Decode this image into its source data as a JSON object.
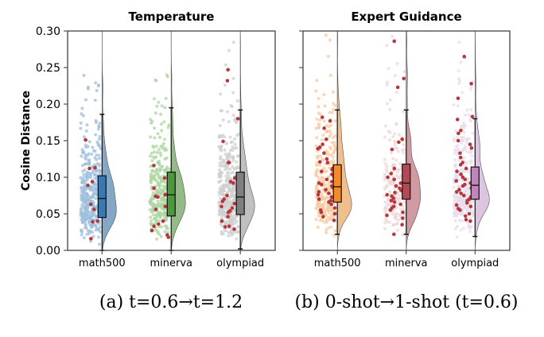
{
  "chart_data": [
    {
      "type": "box+violin+strip",
      "title": "Temperature",
      "ylabel": "Cosine Distance",
      "xlabel": "",
      "ylim": [
        0,
        0.3
      ],
      "yticks": [
        "0.00",
        "0.05",
        "0.10",
        "0.15",
        "0.20",
        "0.25",
        "0.30"
      ],
      "caption": "(a) t=0.6→t=1.2",
      "categories": [
        "math500",
        "minerva",
        "olympiad"
      ],
      "colors": {
        "box": [
          "#3a78b0",
          "#4a9a3a",
          "#7f7f7f"
        ],
        "violin": [
          "#86a6c6",
          "#94bb87",
          "#c0c0c0"
        ],
        "points": [
          "#9fbfdd",
          "#acd6a0",
          "#cfcfcf"
        ],
        "highlight": "#b5383f"
      },
      "box_stats": [
        {
          "whisker_low": 0.0,
          "q1": 0.045,
          "median": 0.071,
          "q3": 0.102,
          "whisker_high": 0.186
        },
        {
          "whisker_low": 0.0,
          "q1": 0.047,
          "median": 0.076,
          "q3": 0.107,
          "whisker_high": 0.195
        },
        {
          "whisker_low": 0.002,
          "q1": 0.049,
          "median": 0.073,
          "q3": 0.107,
          "whisker_high": 0.192
        }
      ],
      "highlighted_points": [
        [
          0.151,
          0.113,
          0.112,
          0.094,
          0.089,
          0.063,
          0.056,
          0.04,
          0.039,
          0.016
        ],
        [
          0.116,
          0.099,
          0.085,
          0.076,
          0.074,
          0.073,
          0.06,
          0.056,
          0.051,
          0.04,
          0.036,
          0.033,
          0.027,
          0.021,
          0.018
        ],
        [
          0.247,
          0.232,
          0.18,
          0.149,
          0.12,
          0.12,
          0.099,
          0.094,
          0.092,
          0.075,
          0.07,
          0.067,
          0.064,
          0.06,
          0.058,
          0.054,
          0.052,
          0.046,
          0.04,
          0.033,
          0.032,
          0.029
        ]
      ]
    },
    {
      "type": "box+violin+strip",
      "title": "Expert Guidance",
      "ylabel": "",
      "xlabel": "",
      "ylim": [
        0,
        0.3
      ],
      "yticks": [
        "",
        "",
        "",
        "",
        "",
        "",
        ""
      ],
      "caption": "(b) 0-shot→1-shot (t=0.6)",
      "categories": [
        "math500",
        "minerva",
        "olympiad"
      ],
      "colors": {
        "box": [
          "#f58a2c",
          "#b04a55",
          "#c283bf"
        ],
        "violin": [
          "#efbf8e",
          "#cf9aa0",
          "#dcc6df"
        ],
        "points": [
          "#f9c9a0",
          "#eed6da",
          "#e8dcec"
        ],
        "highlight": "#b5383f"
      },
      "box_stats": [
        {
          "whisker_low": 0.022,
          "q1": 0.066,
          "median": 0.087,
          "q3": 0.117,
          "whisker_high": 0.192
        },
        {
          "whisker_low": 0.022,
          "q1": 0.07,
          "median": 0.092,
          "q3": 0.118,
          "whisker_high": 0.192
        },
        {
          "whisker_low": 0.019,
          "q1": 0.07,
          "median": 0.089,
          "q3": 0.114,
          "whisker_high": 0.18
        }
      ],
      "highlighted_points": [
        [
          0.182,
          0.177,
          0.167,
          0.152,
          0.145,
          0.141,
          0.139,
          0.133,
          0.125,
          0.121,
          0.12,
          0.115,
          0.112,
          0.11,
          0.108,
          0.104,
          0.1,
          0.097,
          0.094,
          0.092,
          0.09,
          0.088,
          0.086,
          0.083,
          0.08,
          0.078,
          0.076,
          0.073,
          0.07,
          0.068,
          0.066,
          0.063,
          0.058,
          0.055,
          0.052,
          0.05,
          0.046,
          0.041
        ],
        [
          0.286,
          0.235,
          0.223,
          0.152,
          0.148,
          0.138,
          0.112,
          0.105,
          0.1,
          0.097,
          0.092,
          0.088,
          0.085,
          0.082,
          0.079,
          0.076,
          0.074,
          0.071,
          0.068,
          0.066,
          0.063,
          0.06,
          0.058,
          0.055,
          0.052,
          0.048,
          0.044,
          0.035,
          0.022
        ],
        [
          0.265,
          0.228,
          0.208,
          0.183,
          0.179,
          0.164,
          0.16,
          0.15,
          0.145,
          0.14,
          0.133,
          0.127,
          0.12,
          0.117,
          0.112,
          0.108,
          0.104,
          0.1,
          0.097,
          0.095,
          0.092,
          0.09,
          0.088,
          0.085,
          0.083,
          0.08,
          0.078,
          0.075,
          0.073,
          0.07,
          0.068,
          0.065,
          0.062,
          0.06,
          0.057,
          0.055,
          0.05,
          0.047,
          0.042,
          0.04
        ]
      ]
    }
  ]
}
